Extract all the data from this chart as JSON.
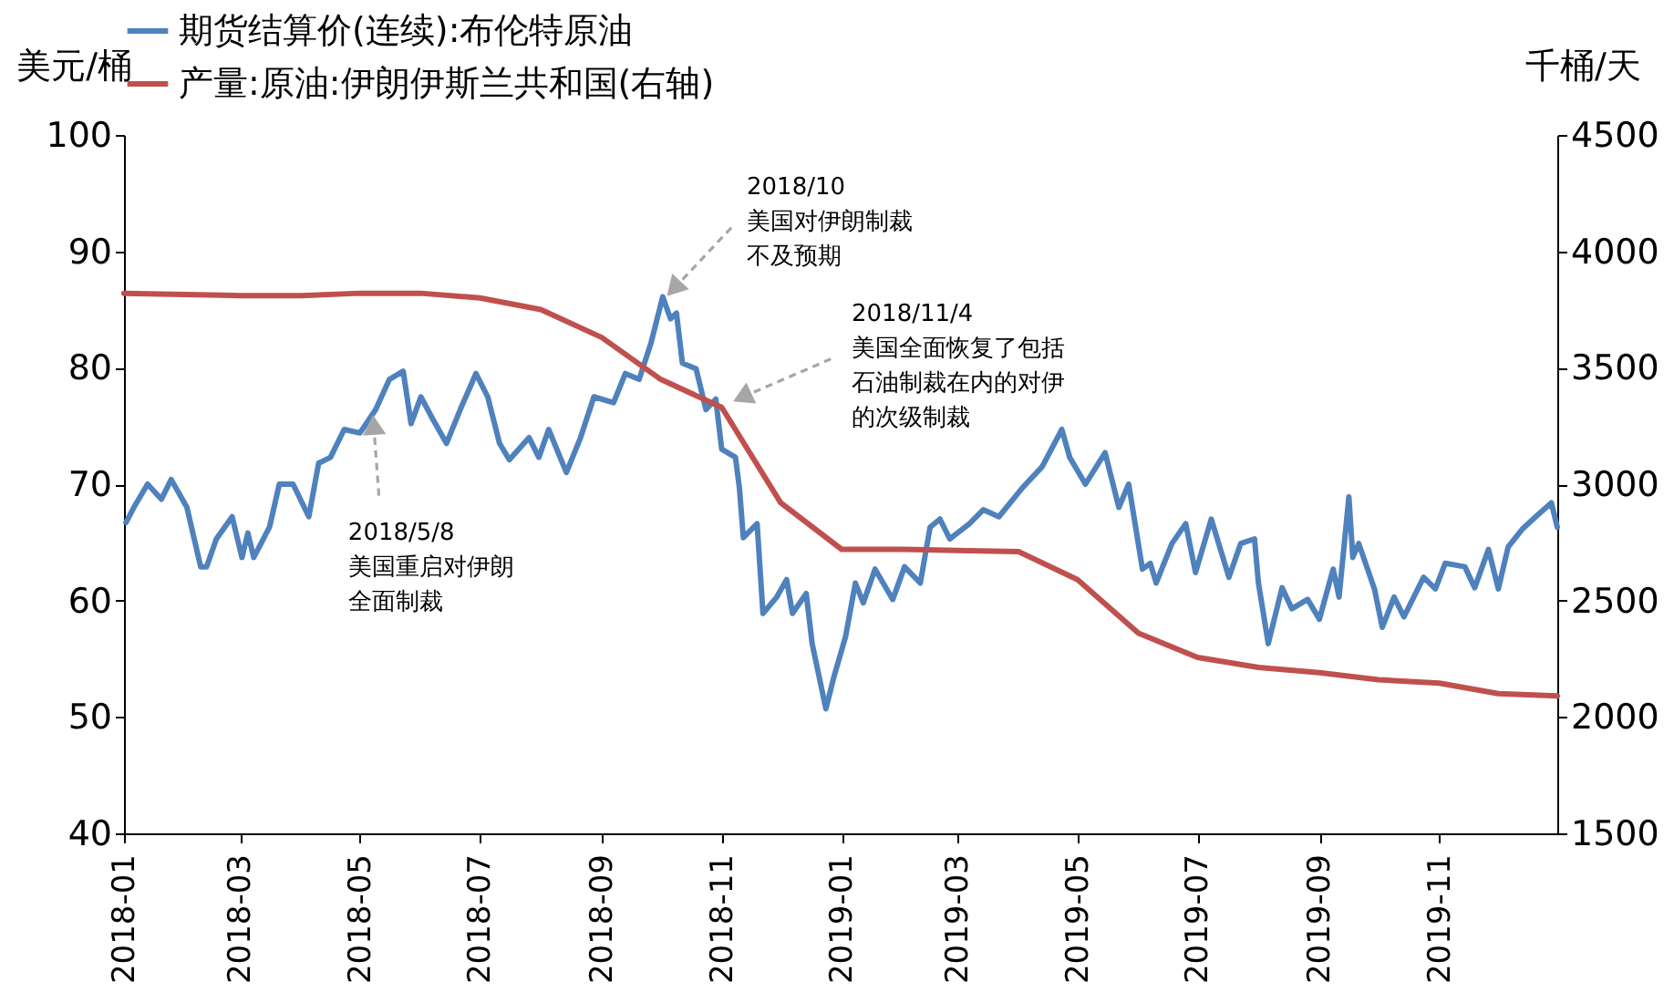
{
  "chart_data": {
    "type": "line",
    "ylabel": "美元/桶",
    "y2label": "千桶/天",
    "xlim": [
      "2018-01-01",
      "2019-12-31"
    ],
    "xticks": [
      "2018-01",
      "2018-03",
      "2018-05",
      "2018-07",
      "2018-09",
      "2018-11",
      "2019-01",
      "2019-03",
      "2019-05",
      "2019-07",
      "2019-09",
      "2019-11"
    ],
    "ylim": [
      40,
      100
    ],
    "yticks": [
      40,
      50,
      60,
      70,
      80,
      90,
      100
    ],
    "y2lim": [
      1500,
      4500
    ],
    "y2ticks": [
      1500,
      2000,
      2500,
      3000,
      3500,
      4000,
      4500
    ],
    "grid": false,
    "legend": "top",
    "line_style": "solid",
    "marker": "none",
    "series": [
      {
        "name": "期货结算价(连续):布伦特原油",
        "color": "#4f81bd",
        "x": [
          "2018-01-02",
          "2018-01-06",
          "2018-01-13",
          "2018-01-20",
          "2018-01-25",
          "2018-02-02",
          "2018-02-09",
          "2018-02-12",
          "2018-02-17",
          "2018-02-25",
          "2018-03-02",
          "2018-03-05",
          "2018-03-08",
          "2018-03-16",
          "2018-03-21",
          "2018-03-28",
          "2018-04-05",
          "2018-04-10",
          "2018-04-16",
          "2018-04-23",
          "2018-05-01",
          "2018-05-09",
          "2018-05-16",
          "2018-05-23",
          "2018-05-27",
          "2018-06-01",
          "2018-06-07",
          "2018-06-14",
          "2018-06-21",
          "2018-06-29",
          "2018-07-05",
          "2018-07-11",
          "2018-07-16",
          "2018-07-26",
          "2018-07-31",
          "2018-08-05",
          "2018-08-14",
          "2018-08-21",
          "2018-08-28",
          "2018-09-07",
          "2018-09-13",
          "2018-09-20",
          "2018-09-26",
          "2018-10-02",
          "2018-10-06",
          "2018-10-09",
          "2018-10-12",
          "2018-10-19",
          "2018-10-24",
          "2018-10-29",
          "2018-11-01",
          "2018-11-08",
          "2018-11-10",
          "2018-11-12",
          "2018-11-19",
          "2018-11-22",
          "2018-11-29",
          "2018-12-04",
          "2018-12-07",
          "2018-12-14",
          "2018-12-17",
          "2018-12-24",
          "2018-12-28",
          "2019-01-03",
          "2019-01-08",
          "2019-01-12",
          "2019-01-18",
          "2019-01-27",
          "2019-02-02",
          "2019-02-10",
          "2019-02-15",
          "2019-02-20",
          "2019-02-25",
          "2019-03-07",
          "2019-03-14",
          "2019-03-22",
          "2019-04-03",
          "2019-04-13",
          "2019-04-23",
          "2019-04-27",
          "2019-05-05",
          "2019-05-15",
          "2019-05-22",
          "2019-05-27",
          "2019-06-03",
          "2019-06-07",
          "2019-06-10",
          "2019-06-18",
          "2019-06-25",
          "2019-06-30",
          "2019-07-08",
          "2019-07-17",
          "2019-07-23",
          "2019-07-30",
          "2019-08-01",
          "2019-08-06",
          "2019-08-13",
          "2019-08-18",
          "2019-08-26",
          "2019-09-01",
          "2019-09-08",
          "2019-09-11",
          "2019-09-16",
          "2019-09-18",
          "2019-09-21",
          "2019-09-29",
          "2019-10-03",
          "2019-10-09",
          "2019-10-14",
          "2019-10-24",
          "2019-10-30",
          "2019-11-04",
          "2019-11-14",
          "2019-11-19",
          "2019-11-26",
          "2019-12-01",
          "2019-12-06",
          "2019-12-13",
          "2019-12-20",
          "2019-12-28",
          "2019-12-31"
        ],
        "values": [
          66.7,
          68,
          70,
          68.7,
          70.4,
          68,
          62.9,
          62.9,
          65.3,
          67.2,
          63.7,
          65.8,
          63.7,
          66.3,
          70,
          70,
          67.2,
          71.8,
          72.3,
          74.7,
          74.4,
          76.4,
          79,
          79.7,
          75.2,
          77.5,
          75.6,
          73.5,
          76.4,
          79.5,
          77.5,
          73.5,
          72.1,
          74,
          72.3,
          74.7,
          71,
          73.9,
          77.5,
          77,
          79.5,
          79,
          82.1,
          86.1,
          84.2,
          84.7,
          80.4,
          79.9,
          76.4,
          77.3,
          73,
          72.3,
          69.7,
          65.4,
          66.6,
          58.9,
          60.3,
          61.8,
          58.9,
          60.6,
          56.3,
          50.7,
          53.4,
          56.9,
          61.5,
          59.8,
          62.7,
          60.1,
          62.9,
          61.5,
          66.3,
          67,
          65.3,
          66.6,
          67.8,
          67.2,
          69.7,
          71.5,
          74.7,
          72.3,
          70,
          72.7,
          68,
          70,
          62.7,
          63.2,
          61.5,
          64.9,
          66.6,
          62.4,
          67,
          62,
          64.9,
          65.3,
          61.5,
          56.3,
          61.1,
          59.3,
          60.1,
          58.4,
          62.7,
          60.3,
          68.9,
          63.7,
          64.9,
          61,
          57.7,
          60.3,
          58.6,
          62,
          61,
          63.2,
          62.9,
          61.1,
          64.4,
          61,
          64.6,
          66.1,
          67.2,
          68.4,
          66.3
        ]
      },
      {
        "name": "产量:原油:伊朗伊斯兰共和国(右轴)",
        "color": "#c0504d",
        "axis": "y2",
        "x": [
          "2018-01",
          "2018-02",
          "2018-03",
          "2018-04",
          "2018-05",
          "2018-06",
          "2018-07",
          "2018-08",
          "2018-09",
          "2018-10",
          "2018-11",
          "2018-12",
          "2019-01",
          "2019-02",
          "2019-03",
          "2019-04",
          "2019-05",
          "2019-06",
          "2019-07",
          "2019-08",
          "2019-09",
          "2019-10",
          "2019-11",
          "2019-12",
          "2019-12-31"
        ],
        "values": [
          3820,
          3815,
          3810,
          3810,
          3820,
          3820,
          3800,
          3750,
          3630,
          3450,
          3330,
          2920,
          2720,
          2720,
          2715,
          2710,
          2590,
          2360,
          2256,
          2213,
          2190,
          2160,
          2145,
          2100,
          2090
        ]
      }
    ],
    "annotations": [
      {
        "text": "2018/5/8美国重启对伊朗全面制裁",
        "x": "2018-05-08",
        "y": 76.2
      },
      {
        "text": "2018/10美国对伊朗制裁不及预期",
        "x": "2018-10-03",
        "y": 86
      },
      {
        "text": "2018/11/4美国全面恢复了包括石油制裁在内的对伊的次级制裁",
        "x": "2018-11-04",
        "y": 77
      }
    ]
  }
}
